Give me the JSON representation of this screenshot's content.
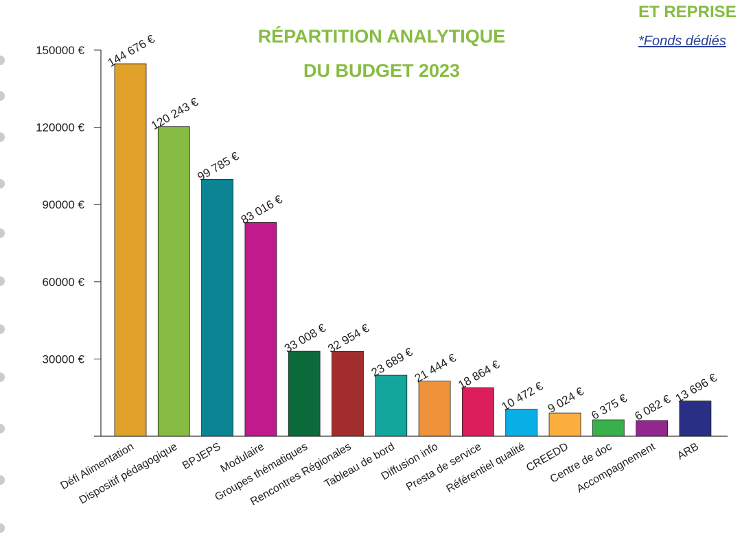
{
  "chart_data": {
    "type": "bar",
    "title": [
      "RÉPARTITION ANALYTIQUE",
      "DU BUDGET 2023"
    ],
    "annotations": [
      "ET REPRISE",
      "*Fonds dédiés"
    ],
    "categories": [
      "Défi Alimentation",
      "Dispositif pédagogique",
      "BPJEPS",
      "Modulaire",
      "Groupes thématiques",
      "Rencontres Régionales",
      "Tableau de bord",
      "Diffusion info",
      "Presta de service",
      "Référentiel qualité",
      "CREEDD",
      "Centre de doc",
      "Accompagnement",
      "ARB"
    ],
    "values": [
      144676,
      120243,
      99785,
      83016,
      33008,
      32954,
      23689,
      21444,
      18864,
      10472,
      9024,
      6375,
      6082,
      13696
    ],
    "value_labels": [
      "144 676 €",
      "120 243 €",
      "99 785 €",
      "83 016 €",
      "33 008 €",
      "32 954 €",
      "23 689 €",
      "21 444 €",
      "18 864 €",
      "10 472 €",
      "9 024 €",
      "6 375 €",
      "6 082 €",
      "13 696 €"
    ],
    "colors": [
      "#e2a229",
      "#86bc43",
      "#0b8493",
      "#c01a8c",
      "#0b6a3a",
      "#a12e2c",
      "#13a69c",
      "#ef923a",
      "#dc1f5a",
      "#0aaee6",
      "#fbad3e",
      "#38b14a",
      "#922790",
      "#2a2f86"
    ],
    "ylim": [
      0,
      150000
    ],
    "yticks": [
      {
        "value": 30000,
        "label": "30000 €"
      },
      {
        "value": 60000,
        "label": "60000 €"
      },
      {
        "value": 90000,
        "label": "90000 €"
      },
      {
        "value": 120000,
        "label": "120000 €"
      },
      {
        "value": 150000,
        "label": "150000 €"
      }
    ],
    "grid": false
  }
}
